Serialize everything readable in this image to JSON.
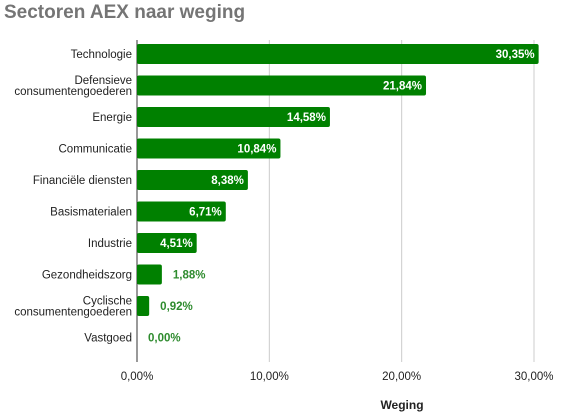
{
  "chart_data": {
    "type": "bar",
    "orientation": "horizontal",
    "title": "Sectoren AEX naar weging",
    "xlabel": "Weging",
    "ylabel": "",
    "categories": [
      [
        "Technologie"
      ],
      [
        "Defensieve",
        "consumentengoederen"
      ],
      [
        "Energie"
      ],
      [
        "Communicatie"
      ],
      [
        "Financiële diensten"
      ],
      [
        "Basismaterialen"
      ],
      [
        "Industrie"
      ],
      [
        "Gezondheidszorg"
      ],
      [
        "Cyclische",
        "consumentengoederen"
      ],
      [
        "Vastgoed"
      ]
    ],
    "values": [
      30.35,
      21.84,
      14.58,
      10.84,
      8.38,
      6.71,
      4.51,
      1.88,
      0.92,
      0.0
    ],
    "value_labels": [
      "30,35%",
      "21,84%",
      "14,58%",
      "10,84%",
      "8,38%",
      "6,71%",
      "4,51%",
      "1,88%",
      "0,92%",
      "0,00%"
    ],
    "xlim": [
      0,
      30
    ],
    "xticks": [
      0,
      10,
      20,
      30
    ],
    "xtick_labels": [
      "0,00%",
      "10,00%",
      "20,00%",
      "30,00%"
    ],
    "grid": true,
    "legend": "none",
    "colors": {
      "bar": "#008000",
      "label_inside": "#ffffff",
      "label_outside": "#2e8b2e",
      "gridline": "#cccccc",
      "title": "#757575"
    }
  }
}
